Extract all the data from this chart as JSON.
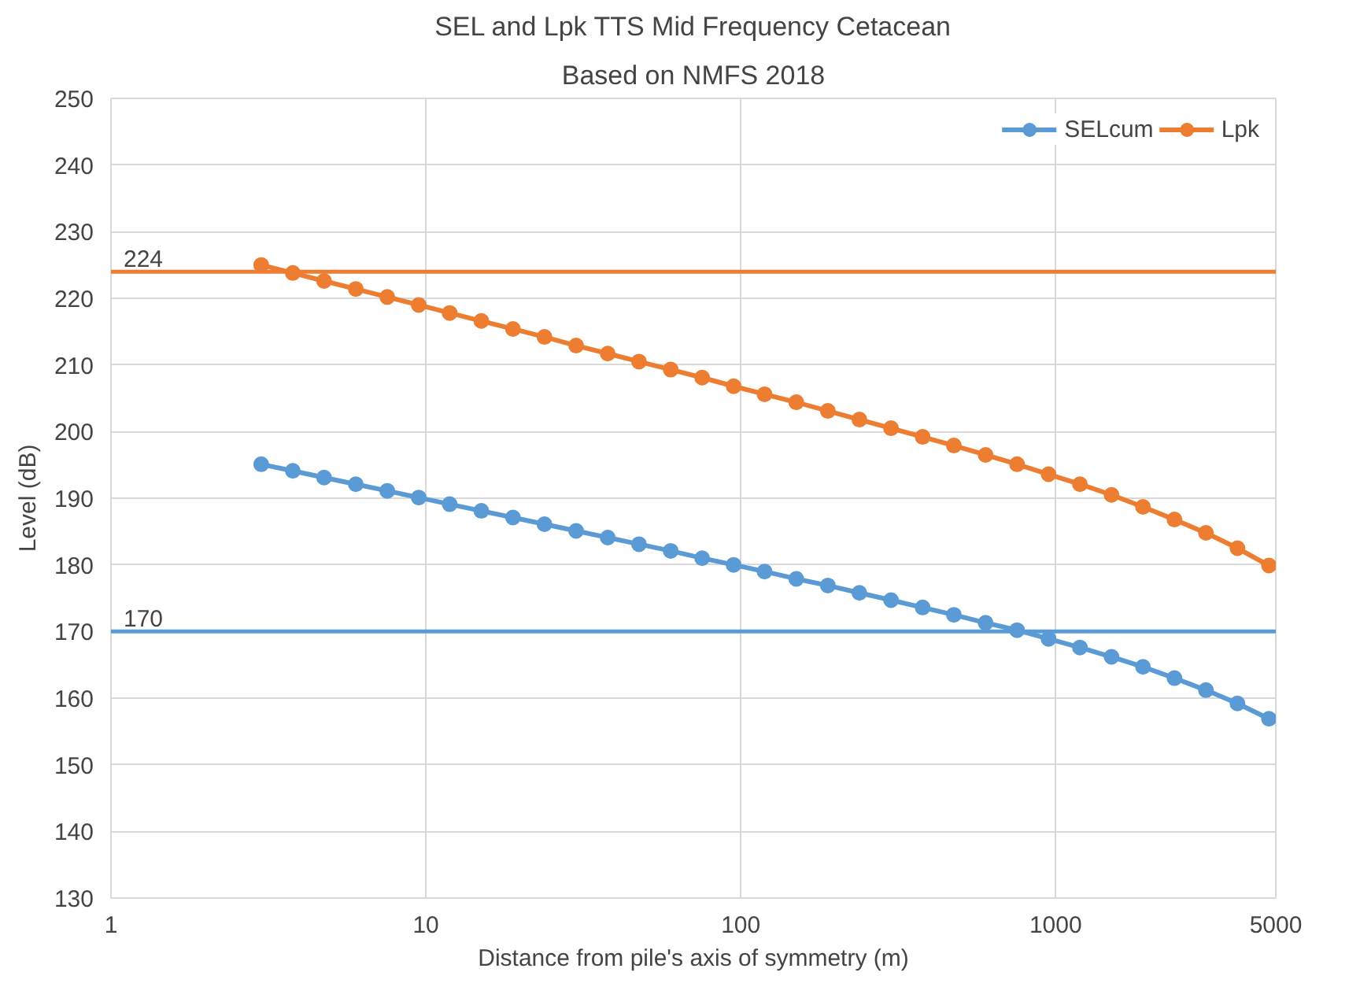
{
  "chart_data": {
    "type": "line",
    "title": "SEL and Lpk TTS Mid Frequency Cetacean",
    "subtitle": "Based on NMFS 2018",
    "xlabel": "Distance from pile's axis of symmetry (m)",
    "ylabel": "Level (dB)",
    "x": [
      3,
      3.78,
      4.75,
      5.99,
      7.54,
      9.49,
      11.9,
      15,
      18.9,
      23.8,
      30,
      37.8,
      47.5,
      59.9,
      75.4,
      94.9,
      119,
      150,
      189,
      238,
      300,
      378,
      475,
      599,
      754,
      949,
      1194,
      1504,
      1893,
      2383,
      3000,
      3777,
      4755
    ],
    "series": [
      {
        "name": "SELcum",
        "color": "#5b9bd5",
        "values": [
          195.1,
          194.1,
          193.1,
          192.1,
          191.1,
          190.1,
          189.1,
          188.1,
          187.1,
          186.1,
          185.1,
          184.1,
          183.1,
          182.1,
          181.0,
          180.0,
          179.0,
          177.9,
          176.9,
          175.8,
          174.7,
          173.6,
          172.5,
          171.3,
          170.2,
          168.9,
          167.6,
          166.2,
          164.7,
          163.0,
          161.2,
          159.2,
          156.9
        ]
      },
      {
        "name": "Lpk",
        "color": "#ed7d31",
        "values": [
          225.0,
          223.8,
          222.6,
          221.4,
          220.2,
          219.0,
          217.8,
          216.6,
          215.4,
          214.2,
          212.9,
          211.7,
          210.5,
          209.3,
          208.1,
          206.8,
          205.6,
          204.4,
          203.1,
          201.8,
          200.5,
          199.2,
          197.9,
          196.5,
          195.1,
          193.6,
          192.1,
          190.5,
          188.7,
          186.8,
          184.8,
          182.5,
          179.9
        ]
      }
    ],
    "ref_lines": [
      {
        "axis": "y",
        "value": 224,
        "label": "224",
        "color": "#ed7d31"
      },
      {
        "axis": "y",
        "value": 170,
        "label": "170",
        "color": "#5b9bd5"
      }
    ],
    "log": "x",
    "xlim": [
      1,
      5000
    ],
    "xticks": [
      1,
      10,
      100,
      1000,
      5000
    ],
    "ylim": [
      130,
      250
    ],
    "yticks": [
      130,
      140,
      150,
      160,
      170,
      180,
      190,
      200,
      210,
      220,
      230,
      240,
      250
    ],
    "grid": true,
    "legend": "top right",
    "marker": "circle",
    "line_style": "solid"
  }
}
